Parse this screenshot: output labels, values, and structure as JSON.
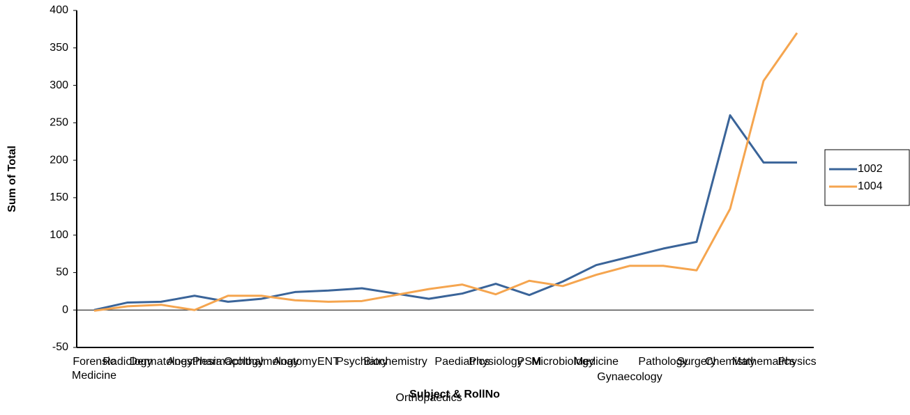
{
  "chart_data": {
    "type": "line",
    "x_label": "Subject & RollNo",
    "y_label": "Sum of Total",
    "categories": [
      "Forensic Medicine",
      "Radiology",
      "Dermatology",
      "Anesthesia",
      "Pharmacology",
      "Ophthalmology",
      "Anatomy",
      "ENT",
      "Psychiatry",
      "Biochemistry",
      "Orthopaedics",
      "Paediatrics",
      "Physiology",
      "PSM",
      "Microbiology",
      "Medicine",
      "Gynaecology",
      "Pathology",
      "Surgery",
      "Chemistry",
      "Mathematics",
      "Physics"
    ],
    "series": [
      {
        "name": "1002",
        "color": "#3a6499",
        "values": [
          0,
          10,
          11,
          19,
          11,
          15,
          24,
          26,
          29,
          22,
          15,
          22,
          35,
          20,
          38,
          60,
          71,
          82,
          91,
          260,
          197,
          197
        ]
      },
      {
        "name": "1004",
        "color": "#f5a54f",
        "values": [
          -1,
          5,
          7,
          0,
          19,
          19,
          13,
          11,
          12,
          20,
          28,
          34,
          21,
          39,
          32,
          47,
          59,
          59,
          53,
          135,
          306,
          370
        ]
      }
    ],
    "ylim": [
      -50,
      400
    ],
    "yticks": [
      -50,
      0,
      50,
      100,
      150,
      200,
      250,
      300,
      350,
      400
    ],
    "legend": "right"
  }
}
